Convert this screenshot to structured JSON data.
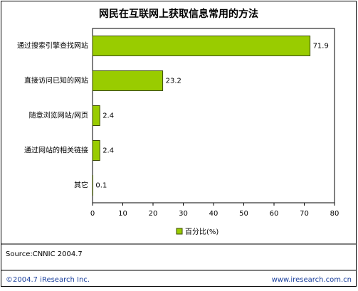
{
  "chart_data": {
    "type": "bar",
    "orientation": "horizontal",
    "title": "网民在互联网上获取信息常用的方法",
    "categories": [
      "通过搜索引擎查找网站",
      "直接访问已知的网站",
      "随意浏览网站/网页",
      "通过网站的相关链接",
      "其它"
    ],
    "series": [
      {
        "name": "百分比(%)",
        "color": "#99cc00",
        "values": [
          71.9,
          23.2,
          2.4,
          2.4,
          0.1
        ]
      }
    ],
    "xlim": [
      0,
      80
    ],
    "xticks": [
      0,
      10,
      20,
      30,
      40,
      50,
      60,
      70,
      80
    ],
    "legend": "bottom",
    "source": "Source:CNNIC 2004.7",
    "footer_left": "©2004.7 iResearch Inc.",
    "footer_right": "www.iresearch.com.cn"
  }
}
